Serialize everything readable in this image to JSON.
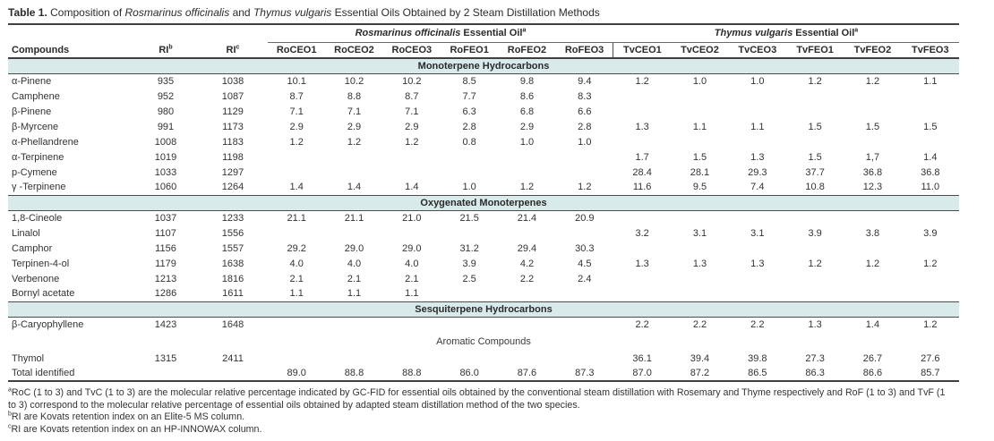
{
  "title": {
    "segments": [
      {
        "text": "Table 1.",
        "bold": true
      },
      {
        "text": " Composition of "
      },
      {
        "text": "Rosmarinus officinalis",
        "italic": true
      },
      {
        "text": " and "
      },
      {
        "text": "Thymus vulgaris",
        "italic": true
      },
      {
        "text": " Essential Oils Obtained by 2 Steam Distillation Methods"
      }
    ]
  },
  "table": {
    "group_headers": [
      {
        "italic": "Rosmarinus officinalis",
        "rest": " Essential Oil",
        "sup": "a",
        "span": 6
      },
      {
        "italic": "Thymus vulgaris",
        "rest": " Essential Oil",
        "sup": "a",
        "span": 6
      }
    ],
    "columns": [
      {
        "label": "Compounds",
        "sup": ""
      },
      {
        "label": "RI",
        "sup": "b"
      },
      {
        "label": "RI",
        "sup": "c"
      },
      {
        "label": "RoCEO1",
        "sup": ""
      },
      {
        "label": "RoCEO2",
        "sup": ""
      },
      {
        "label": "RoCEO3",
        "sup": ""
      },
      {
        "label": "RoFEO1",
        "sup": ""
      },
      {
        "label": "RoFEO2",
        "sup": ""
      },
      {
        "label": "RoFEO3",
        "sup": ""
      },
      {
        "label": "TvCEO1",
        "sup": ""
      },
      {
        "label": "TvCEO2",
        "sup": ""
      },
      {
        "label": "TvCEO3",
        "sup": ""
      },
      {
        "label": "TvFEO1",
        "sup": ""
      },
      {
        "label": "TvFEO2",
        "sup": ""
      },
      {
        "label": "TvFEO3",
        "sup": ""
      }
    ],
    "sections": [
      {
        "name": "Monoterpene Hydrocarbons",
        "band": true,
        "rows": [
          {
            "compound": "α-Pinene",
            "ri_b": "935",
            "ri_c": "1038",
            "values": [
              "10.1",
              "10.2",
              "10.2",
              "8.5",
              "9.8",
              "9.4",
              "1.2",
              "1.0",
              "1.0",
              "1.2",
              "1.2",
              "1.1"
            ]
          },
          {
            "compound": "Camphene",
            "ri_b": "952",
            "ri_c": "1087",
            "values": [
              "8.7",
              "8.8",
              "8.7",
              "7.7",
              "8.6",
              "8.3",
              "",
              "",
              "",
              "",
              "",
              ""
            ]
          },
          {
            "compound": "β-Pinene",
            "ri_b": "980",
            "ri_c": "1129",
            "values": [
              "7.1",
              "7.1",
              "7.1",
              "6.3",
              "6.8",
              "6.6",
              "",
              "",
              "",
              "",
              "",
              ""
            ]
          },
          {
            "compound": "β-Myrcene",
            "ri_b": "991",
            "ri_c": "1173",
            "values": [
              "2.9",
              "2.9",
              "2.9",
              "2.8",
              "2.9",
              "2.8",
              "1.3",
              "1.1",
              "1.1",
              "1.5",
              "1.5",
              "1.5"
            ]
          },
          {
            "compound": "α-Phellandrene",
            "ri_b": "1008",
            "ri_c": "1183",
            "values": [
              "1.2",
              "1.2",
              "1.2",
              "0.8",
              "1.0",
              "1.0",
              "",
              "",
              "",
              "",
              "",
              ""
            ]
          },
          {
            "compound": "α-Terpinene",
            "ri_b": "1019",
            "ri_c": "1198",
            "values": [
              "",
              "",
              "",
              "",
              "",
              "",
              "1.7",
              "1.5",
              "1.3",
              "1.5",
              "1,7",
              "1.4"
            ]
          },
          {
            "compound": "p-Cymene",
            "ri_b": "1033",
            "ri_c": "1297",
            "values": [
              "",
              "",
              "",
              "",
              "",
              "",
              "28.4",
              "28.1",
              "29.3",
              "37.7",
              "36.8",
              "36.8"
            ]
          },
          {
            "compound": "γ -Terpinene",
            "ri_b": "1060",
            "ri_c": "1264",
            "values": [
              "1.4",
              "1.4",
              "1.4",
              "1.0",
              "1.2",
              "1.2",
              "11.6",
              "9.5",
              "7.4",
              "10.8",
              "12.3",
              "11.0"
            ]
          }
        ]
      },
      {
        "name": "Oxygenated Monoterpenes",
        "band": true,
        "rows": [
          {
            "compound": "1,8-Cineole",
            "ri_b": "1037",
            "ri_c": "1233",
            "values": [
              "21.1",
              "21.1",
              "21.0",
              "21.5",
              "21.4",
              "20.9",
              "",
              "",
              "",
              "",
              "",
              ""
            ]
          },
          {
            "compound": "Linalol",
            "ri_b": "1107",
            "ri_c": "1556",
            "values": [
              "",
              "",
              "",
              "",
              "",
              "",
              "3.2",
              "3.1",
              "3.1",
              "3.9",
              "3.8",
              "3.9"
            ]
          },
          {
            "compound": "Camphor",
            "ri_b": "1156",
            "ri_c": "1557",
            "values": [
              "29.2",
              "29.0",
              "29.0",
              "31.2",
              "29.4",
              "30.3",
              "",
              "",
              "",
              "",
              "",
              ""
            ]
          },
          {
            "compound": "Terpinen-4-ol",
            "ri_b": "1179",
            "ri_c": "1638",
            "values": [
              "4.0",
              "4.0",
              "4.0",
              "3.9",
              "4.2",
              "4.5",
              "1.3",
              "1.3",
              "1.3",
              "1.2",
              "1.2",
              "1.2"
            ]
          },
          {
            "compound": "Verbenone",
            "ri_b": "1213",
            "ri_c": "1816",
            "values": [
              "2.1",
              "2.1",
              "2.1",
              "2.5",
              "2.2",
              "2.4",
              "",
              "",
              "",
              "",
              "",
              ""
            ]
          },
          {
            "compound": "Bornyl acetate",
            "ri_b": "1286",
            "ri_c": "1611",
            "values": [
              "1.1",
              "1.1",
              "1.1",
              "",
              "",
              "",
              "",
              "",
              "",
              "",
              "",
              ""
            ]
          }
        ]
      },
      {
        "name": "Sesquiterpene Hydrocarbons",
        "band": true,
        "rows": [
          {
            "compound": "β-Caryophyllene",
            "ri_b": "1423",
            "ri_c": "1648",
            "values": [
              "",
              "",
              "",
              "",
              "",
              "",
              "2.2",
              "2.2",
              "2.2",
              "1.3",
              "1.4",
              "1.2"
            ]
          }
        ]
      },
      {
        "name": "Aromatic Compounds",
        "band": false,
        "rows": [
          {
            "compound": "Thymol",
            "ri_b": "1315",
            "ri_c": "2411",
            "values": [
              "",
              "",
              "",
              "",
              "",
              "",
              "36.1",
              "39.4",
              "39.8",
              "27.3",
              "26.7",
              "27.6"
            ]
          }
        ]
      }
    ],
    "total_row": {
      "label": "Total identified",
      "ri_b": "",
      "ri_c": "",
      "values": [
        "89.0",
        "88.8",
        "88.8",
        "86.0",
        "87.6",
        "87.3",
        "87.0",
        "87.2",
        "86.5",
        "86.3",
        "86.6",
        "85.7"
      ]
    }
  },
  "footnotes": [
    {
      "marker": "a",
      "text": "RoC (1 to 3) and TvC (1 to 3) are the molecular relative percentage indicated by GC-FID for essential oils obtained by the conventional steam distillation with Rosemary and Thyme respectively and RoF (1 to 3) and TvF (1 to 3) correspond to the molecular relative percentage of essential oils obtained by adapted steam distillation method of the two species."
    },
    {
      "marker": "b",
      "text": "RI are Kovats retention index on an Elite-5 MS column."
    },
    {
      "marker": "c",
      "text": "RI are Kovats retention index on an HP-INNOWAX column."
    }
  ],
  "colors": {
    "band_teal": "#d9eaea",
    "rule_dark": "#404040",
    "text": "#333333"
  }
}
